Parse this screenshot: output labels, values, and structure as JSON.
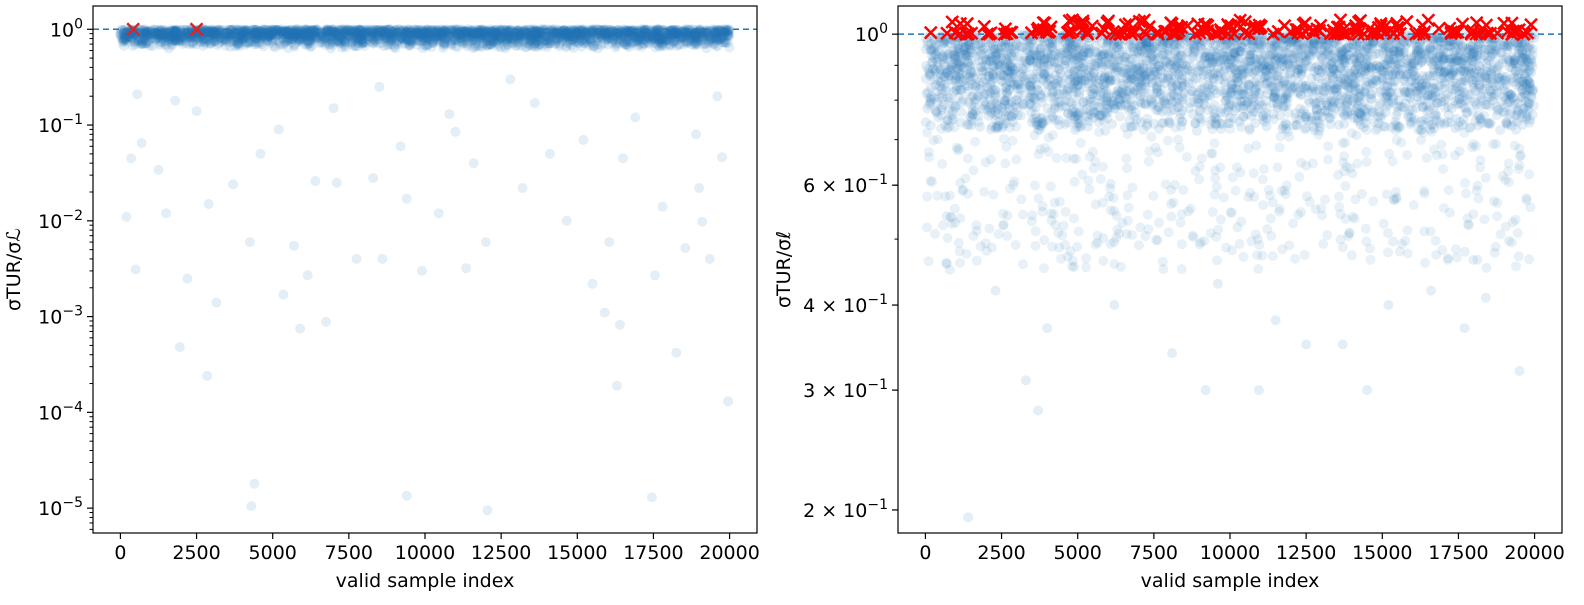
{
  "figure": {
    "background": "#ffffff",
    "point_color": "#1f77b4",
    "marker_color_left": "#d62728",
    "marker_color_right": "#ff0000",
    "refline_color": "#1f77b4"
  },
  "chart_data": [
    {
      "type": "scatter",
      "title": "",
      "xlabel": "valid sample index",
      "ylabel": "σTUR/σℒ",
      "yscale": "log",
      "xlim": [
        -900,
        20900
      ],
      "ylim": [
        5.5e-06,
        1.75
      ],
      "xticks": [
        0,
        2500,
        5000,
        7500,
        10000,
        12500,
        15000,
        17500,
        20000
      ],
      "xtick_labels": [
        "0",
        "2500",
        "5000",
        "7500",
        "10000",
        "12500",
        "15000",
        "17500",
        "20000"
      ],
      "yticks": [
        1,
        0.1,
        0.01,
        0.001,
        0.0001,
        1e-05
      ],
      "ytick_labels": [
        "10^0",
        "10^-1",
        "10^-2",
        "10^-3",
        "10^-4",
        "10^-5"
      ],
      "reference_line_y": 1.0,
      "n_points": 20000,
      "dense_band": [
        0.62,
        1.0
      ],
      "outliers": [
        [
          1950,
          0.00048
        ],
        [
          2850,
          0.00024
        ],
        [
          4400,
          1.8e-05
        ],
        [
          4300,
          1.05e-05
        ],
        [
          9400,
          1.35e-05
        ],
        [
          12050,
          9.5e-06
        ],
        [
          17450,
          1.3e-05
        ],
        [
          19950,
          0.00013
        ],
        [
          16300,
          0.00019
        ],
        [
          18250,
          0.00042
        ],
        [
          5900,
          0.00075
        ],
        [
          6750,
          0.00088
        ],
        [
          3150,
          0.0014
        ],
        [
          5350,
          0.0017
        ],
        [
          16400,
          0.00082
        ],
        [
          15900,
          0.0011
        ],
        [
          8600,
          0.004
        ],
        [
          9900,
          0.003
        ],
        [
          7750,
          0.004
        ],
        [
          15500,
          0.0022
        ],
        [
          17550,
          0.0027
        ],
        [
          500,
          0.0031
        ],
        [
          2200,
          0.0025
        ],
        [
          6150,
          0.0027
        ],
        [
          11350,
          0.0032
        ],
        [
          19350,
          0.004
        ],
        [
          4250,
          0.006
        ],
        [
          5700,
          0.0055
        ],
        [
          12000,
          0.006
        ],
        [
          16050,
          0.006
        ],
        [
          14650,
          0.01
        ],
        [
          19100,
          0.0098
        ],
        [
          18550,
          0.0052
        ],
        [
          200,
          0.011
        ],
        [
          1500,
          0.012
        ],
        [
          2900,
          0.015
        ],
        [
          9400,
          0.017
        ],
        [
          10450,
          0.012
        ],
        [
          7100,
          0.025
        ],
        [
          13200,
          0.022
        ],
        [
          17800,
          0.014
        ],
        [
          19000,
          0.022
        ],
        [
          3700,
          0.024
        ],
        [
          6400,
          0.026
        ],
        [
          8300,
          0.028
        ],
        [
          350,
          0.045
        ],
        [
          700,
          0.065
        ],
        [
          1250,
          0.034
        ],
        [
          11600,
          0.04
        ],
        [
          14100,
          0.05
        ],
        [
          16500,
          0.045
        ],
        [
          19750,
          0.046
        ],
        [
          2500,
          0.14
        ],
        [
          4600,
          0.05
        ],
        [
          9200,
          0.06
        ],
        [
          15200,
          0.07
        ],
        [
          18900,
          0.08
        ],
        [
          550,
          0.21
        ],
        [
          1800,
          0.18
        ],
        [
          7000,
          0.15
        ],
        [
          10800,
          0.13
        ],
        [
          13600,
          0.17
        ],
        [
          16900,
          0.12
        ],
        [
          19600,
          0.2
        ],
        [
          8500,
          0.25
        ],
        [
          12800,
          0.3
        ],
        [
          5200,
          0.09
        ],
        [
          11000,
          0.085
        ]
      ],
      "flagged": [
        [
          420,
          1.0
        ],
        [
          2500,
          1.0
        ]
      ]
    },
    {
      "type": "scatter",
      "title": "",
      "xlabel": "valid sample index",
      "ylabel": "σTUR/σℓ",
      "yscale": "log",
      "xlim": [
        -900,
        20900
      ],
      "ylim": [
        0.185,
        1.1
      ],
      "xticks": [
        0,
        2500,
        5000,
        7500,
        10000,
        12500,
        15000,
        17500,
        20000
      ],
      "xtick_labels": [
        "0",
        "2500",
        "5000",
        "7500",
        "10000",
        "12500",
        "15000",
        "17500",
        "20000"
      ],
      "yticks": [
        1.0,
        0.6,
        0.4,
        0.3,
        0.2
      ],
      "ytick_labels": [
        "10^0",
        "6 × 10^-1",
        "4 × 10^-1",
        "3 × 10^-1",
        "2 × 10^-1"
      ],
      "reference_line_y": 1.0,
      "n_points": 20000,
      "dense_band": [
        0.72,
        1.0
      ],
      "outliers": [
        [
          1400,
          0.195
        ],
        [
          3700,
          0.28
        ],
        [
          3300,
          0.31
        ],
        [
          9200,
          0.3
        ],
        [
          10950,
          0.3
        ],
        [
          14500,
          0.3
        ],
        [
          19500,
          0.32
        ],
        [
          12500,
          0.35
        ],
        [
          17700,
          0.37
        ],
        [
          4000,
          0.37
        ],
        [
          11500,
          0.38
        ],
        [
          13700,
          0.35
        ],
        [
          8100,
          0.34
        ],
        [
          6200,
          0.4
        ],
        [
          15200,
          0.4
        ],
        [
          2300,
          0.42
        ],
        [
          18400,
          0.41
        ],
        [
          700,
          0.46
        ],
        [
          9600,
          0.43
        ],
        [
          16600,
          0.42
        ]
      ],
      "flagged_count": 200,
      "flagged_range": [
        1.0,
        1.05
      ]
    }
  ]
}
